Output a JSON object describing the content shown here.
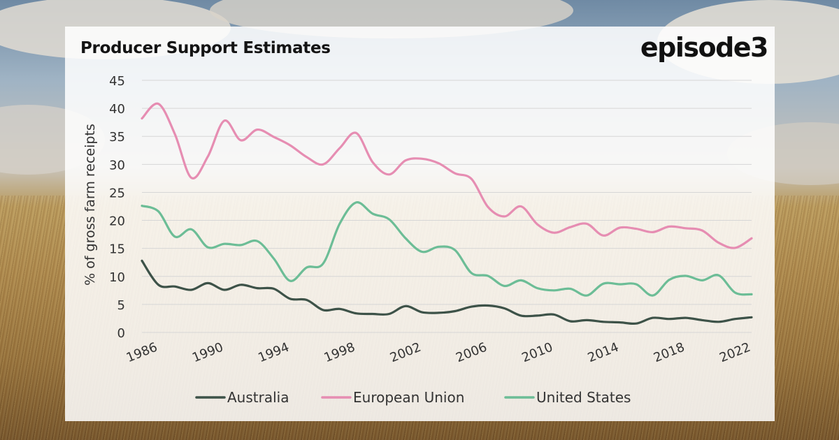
{
  "header": {
    "title": "Producer Support Estimates",
    "brand": "episode3"
  },
  "chart_data": {
    "type": "line",
    "title": "Producer Support Estimates",
    "xlabel": "",
    "ylabel": "% of gross farm receipts",
    "ylim": [
      0,
      45
    ],
    "yticks": [
      0,
      5,
      10,
      15,
      20,
      25,
      30,
      35,
      40,
      45
    ],
    "xticks": [
      "1986",
      "1990",
      "1994",
      "1998",
      "2002",
      "2006",
      "2010",
      "2014",
      "2018",
      "2022"
    ],
    "grid": true,
    "legend": "bottom",
    "x": [
      1986,
      1987,
      1988,
      1989,
      1990,
      1991,
      1992,
      1993,
      1994,
      1995,
      1996,
      1997,
      1998,
      1999,
      2000,
      2001,
      2002,
      2003,
      2004,
      2005,
      2006,
      2007,
      2008,
      2009,
      2010,
      2011,
      2012,
      2013,
      2014,
      2015,
      2016,
      2017,
      2018,
      2019,
      2020,
      2021,
      2022,
      2023
    ],
    "series": [
      {
        "name": "Australia",
        "color": "#3d5248",
        "values": [
          12.8,
          8.5,
          8.2,
          7.6,
          8.8,
          7.6,
          8.5,
          7.9,
          7.8,
          6.0,
          5.8,
          4.0,
          4.2,
          3.4,
          3.3,
          3.3,
          4.7,
          3.6,
          3.5,
          3.8,
          4.6,
          4.8,
          4.3,
          3.0,
          3.0,
          3.2,
          2.0,
          2.2,
          1.9,
          1.8,
          1.6,
          2.6,
          2.4,
          2.6,
          2.2,
          1.9,
          2.4,
          2.7
        ]
      },
      {
        "name": "European Union",
        "color": "#e68db2",
        "values": [
          38.2,
          40.8,
          35.4,
          27.6,
          31.4,
          37.8,
          34.3,
          36.2,
          34.9,
          33.4,
          31.3,
          30.0,
          32.9,
          35.6,
          30.4,
          28.2,
          30.7,
          31.0,
          30.2,
          28.4,
          27.4,
          22.4,
          20.7,
          22.5,
          19.3,
          17.8,
          18.8,
          19.4,
          17.3,
          18.7,
          18.5,
          17.9,
          18.9,
          18.6,
          18.2,
          16.0,
          15.1,
          16.8
        ]
      },
      {
        "name": "United States",
        "color": "#6cbd96",
        "values": [
          22.6,
          21.6,
          17.1,
          18.4,
          15.2,
          15.8,
          15.6,
          16.3,
          13.2,
          9.2,
          11.6,
          12.3,
          19.4,
          23.2,
          21.2,
          20.2,
          16.8,
          14.4,
          15.3,
          14.7,
          10.6,
          10.1,
          8.3,
          9.3,
          7.9,
          7.5,
          7.8,
          6.6,
          8.7,
          8.6,
          8.6,
          6.6,
          9.4,
          10.1,
          9.3,
          10.2,
          7.1,
          6.8
        ]
      }
    ]
  }
}
